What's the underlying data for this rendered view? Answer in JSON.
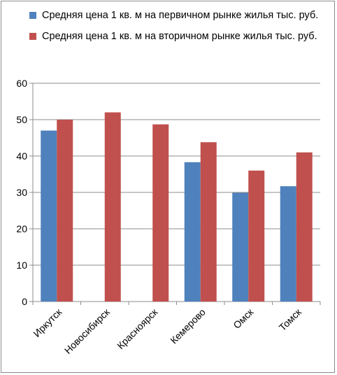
{
  "chart_data": {
    "type": "bar",
    "categories": [
      "Иркутск",
      "Новосибирск",
      "Красноярск",
      "Кемерово",
      "Омск",
      "Томск"
    ],
    "series": [
      {
        "name": "Средняя цена 1 кв. м  на первичном рынке жилья тыс. руб.",
        "color": "#4F81BD",
        "values": [
          47,
          null,
          null,
          38.3,
          29.9,
          31.7
        ]
      },
      {
        "name": "Средняя цена 1 кв. м  на вторичном рынке жилья тыс. руб.",
        "color": "#C0504D",
        "values": [
          50,
          52,
          48.7,
          43.8,
          36,
          41
        ]
      }
    ],
    "ylim": [
      0,
      60
    ],
    "yticks": [
      0,
      10,
      20,
      30,
      40,
      50,
      60
    ],
    "grid": true,
    "legend": "top"
  }
}
